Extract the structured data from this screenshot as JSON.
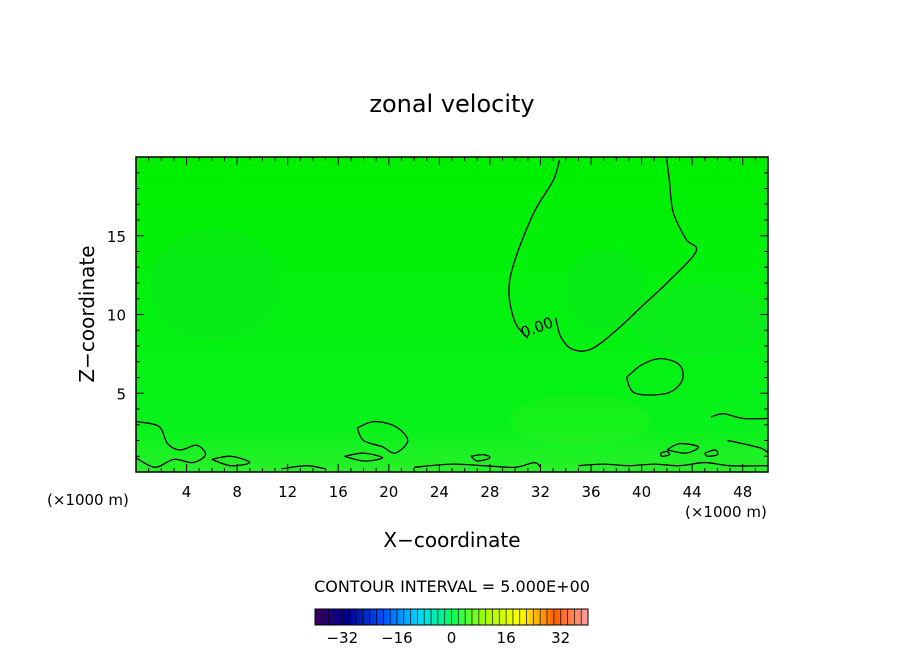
{
  "chart_data": {
    "type": "contour",
    "title": "zonal velocity",
    "xlabel": "X−coordinate",
    "ylabel": "Z−coordinate",
    "x_unit_left": "(×1000 m)",
    "x_unit_right": "(×1000 m)",
    "xlim": [
      0,
      50
    ],
    "ylim": [
      0,
      20
    ],
    "x_ticks": [
      4,
      8,
      12,
      16,
      20,
      24,
      28,
      32,
      36,
      40,
      44,
      48
    ],
    "y_ticks": [
      5,
      10,
      15
    ],
    "contour_label": "0.00",
    "contour_interval_text": "CONTOUR INTERVAL = 5.000E+00",
    "colorbar": {
      "min": -40,
      "max": 40,
      "tick_values": [
        -32,
        -16,
        0,
        16,
        32
      ],
      "tick_labels": [
        "−32",
        "−16",
        "0",
        "16",
        "32"
      ]
    },
    "contours_zero": [
      [
        [
          33.5,
          19.8
        ],
        [
          33.0,
          18.5
        ],
        [
          31.5,
          16.5
        ],
        [
          30.0,
          13.5
        ],
        [
          29.5,
          11.5
        ],
        [
          30.0,
          9.5
        ],
        [
          31.0,
          8.5
        ]
      ],
      [
        [
          33.2,
          9.8
        ],
        [
          33.6,
          8.6
        ],
        [
          34.5,
          7.8
        ],
        [
          36.0,
          7.8
        ],
        [
          38.0,
          9.0
        ],
        [
          40.0,
          10.5
        ],
        [
          42.0,
          12.0
        ],
        [
          44.3,
          14.0
        ],
        [
          43.5,
          14.8
        ],
        [
          42.5,
          16.5
        ],
        [
          42.2,
          18.5
        ],
        [
          42.0,
          19.8
        ]
      ],
      [
        [
          38.8,
          6.0
        ],
        [
          40.0,
          6.8
        ],
        [
          41.5,
          7.2
        ],
        [
          43.0,
          6.8
        ],
        [
          43.2,
          5.8
        ],
        [
          42.0,
          5.0
        ],
        [
          39.5,
          5.0
        ],
        [
          38.8,
          6.0
        ]
      ],
      [
        [
          0,
          3.2
        ],
        [
          1.8,
          2.9
        ],
        [
          2.5,
          1.8
        ],
        [
          3.5,
          1.4
        ],
        [
          4.8,
          1.7
        ],
        [
          5.5,
          1.1
        ],
        [
          4.5,
          0.6
        ],
        [
          3.0,
          0.8
        ],
        [
          1.5,
          0.3
        ],
        [
          0,
          0.9
        ]
      ],
      [
        [
          6.0,
          0.8
        ],
        [
          7.5,
          1.0
        ],
        [
          9.0,
          0.6
        ],
        [
          7.5,
          0.4
        ],
        [
          6.0,
          0.8
        ]
      ],
      [
        [
          17.5,
          2.8
        ],
        [
          18.8,
          3.2
        ],
        [
          20.5,
          2.9
        ],
        [
          21.5,
          2.0
        ],
        [
          20.5,
          1.2
        ],
        [
          19.5,
          1.6
        ],
        [
          18.0,
          2.0
        ],
        [
          17.5,
          2.8
        ]
      ],
      [
        [
          16.5,
          1.0
        ],
        [
          18.0,
          1.2
        ],
        [
          19.5,
          0.9
        ],
        [
          18.0,
          0.7
        ],
        [
          16.5,
          1.0
        ]
      ],
      [
        [
          22.0,
          0.3
        ],
        [
          25.0,
          0.5
        ],
        [
          27.5,
          0.4
        ],
        [
          30.0,
          0.3
        ],
        [
          31.5,
          0.6
        ],
        [
          32.0,
          0.3
        ]
      ],
      [
        [
          11.5,
          0.2
        ],
        [
          13.5,
          0.4
        ],
        [
          15.0,
          0.2
        ]
      ],
      [
        [
          26.5,
          1.0
        ],
        [
          27.5,
          1.1
        ],
        [
          28.0,
          0.9
        ],
        [
          27.0,
          0.7
        ],
        [
          26.5,
          1.0
        ]
      ],
      [
        [
          35.0,
          0.4
        ],
        [
          37.0,
          0.5
        ],
        [
          39.0,
          0.4
        ],
        [
          41.0,
          0.5
        ],
        [
          43.0,
          0.4
        ],
        [
          45.0,
          0.6
        ],
        [
          47.0,
          0.4
        ],
        [
          50.0,
          0.4
        ]
      ],
      [
        [
          42.0,
          1.4
        ],
        [
          43.0,
          1.8
        ],
        [
          44.5,
          1.6
        ],
        [
          43.5,
          1.2
        ],
        [
          42.0,
          1.4
        ]
      ],
      [
        [
          45.5,
          3.5
        ],
        [
          46.5,
          3.7
        ],
        [
          48.0,
          3.4
        ],
        [
          50.0,
          3.4
        ]
      ],
      [
        [
          46.8,
          2.0
        ],
        [
          48.0,
          1.8
        ],
        [
          49.5,
          1.5
        ],
        [
          50.0,
          1.2
        ]
      ],
      [
        [
          45.0,
          1.2
        ],
        [
          45.8,
          1.4
        ],
        [
          46.0,
          1.1
        ],
        [
          45.2,
          1.0
        ],
        [
          45.0,
          1.2
        ]
      ],
      [
        [
          41.5,
          1.2
        ],
        [
          42.0,
          1.3
        ],
        [
          42.2,
          1.1
        ],
        [
          41.6,
          1.0
        ],
        [
          41.5,
          1.2
        ]
      ]
    ]
  }
}
